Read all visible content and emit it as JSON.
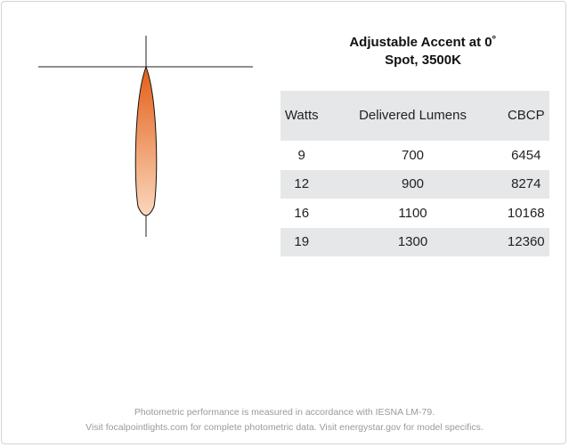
{
  "header": {
    "title": [
      "Adjustable Accent at 0˚",
      "Spot, 3500K"
    ]
  },
  "table": {
    "columns": [
      "Watts",
      "Delivered Lumens",
      "CBCP"
    ],
    "rows": [
      [
        9,
        700,
        6454
      ],
      [
        12,
        900,
        8274
      ],
      [
        16,
        1100,
        10168
      ],
      [
        19,
        1300,
        12360
      ]
    ]
  },
  "footer": [
    "Photometric performance is measured in accordance with IESNA LM-79.",
    "Visit focalpointlights.com for complete photometric data. Visit energystar.gov for model specifics."
  ]
}
